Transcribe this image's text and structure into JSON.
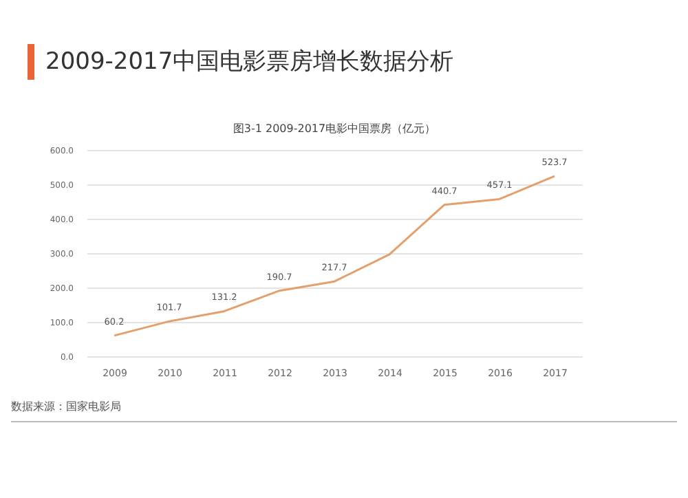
{
  "chart_data": {
    "type": "line",
    "title": "2009-2017中国电影票房增长数据分析",
    "subtitle": "图3-1 2009-2017电影中国票房（亿元）",
    "categories": [
      "2009",
      "2010",
      "2011",
      "2012",
      "2013",
      "2014",
      "2015",
      "2016",
      "2017"
    ],
    "series": [
      {
        "color": "#e3a06c",
        "values": [
          60.2,
          101.7,
          131.2,
          190.7,
          217.7,
          296.4,
          440.7,
          457.1,
          523.7
        ]
      }
    ],
    "value_labels": [
      "60.2",
      "101.7",
      "131.2",
      "190.7",
      "217.7",
      null,
      "440.7",
      "457.1",
      "523.7"
    ],
    "ylim": [
      0,
      600
    ],
    "yticks": [
      {
        "value": 0,
        "label": "0.0"
      },
      {
        "value": 100,
        "label": "100.0"
      },
      {
        "value": 200,
        "label": "200.0"
      },
      {
        "value": 300,
        "label": "300.0"
      },
      {
        "value": 400,
        "label": "400.0"
      },
      {
        "value": 500,
        "label": "500.0"
      },
      {
        "value": 600,
        "label": "600.0"
      }
    ],
    "grid": "y",
    "marker": "none",
    "line_style": "solid",
    "annotations": [
      "数据来源：国家电影局"
    ]
  }
}
